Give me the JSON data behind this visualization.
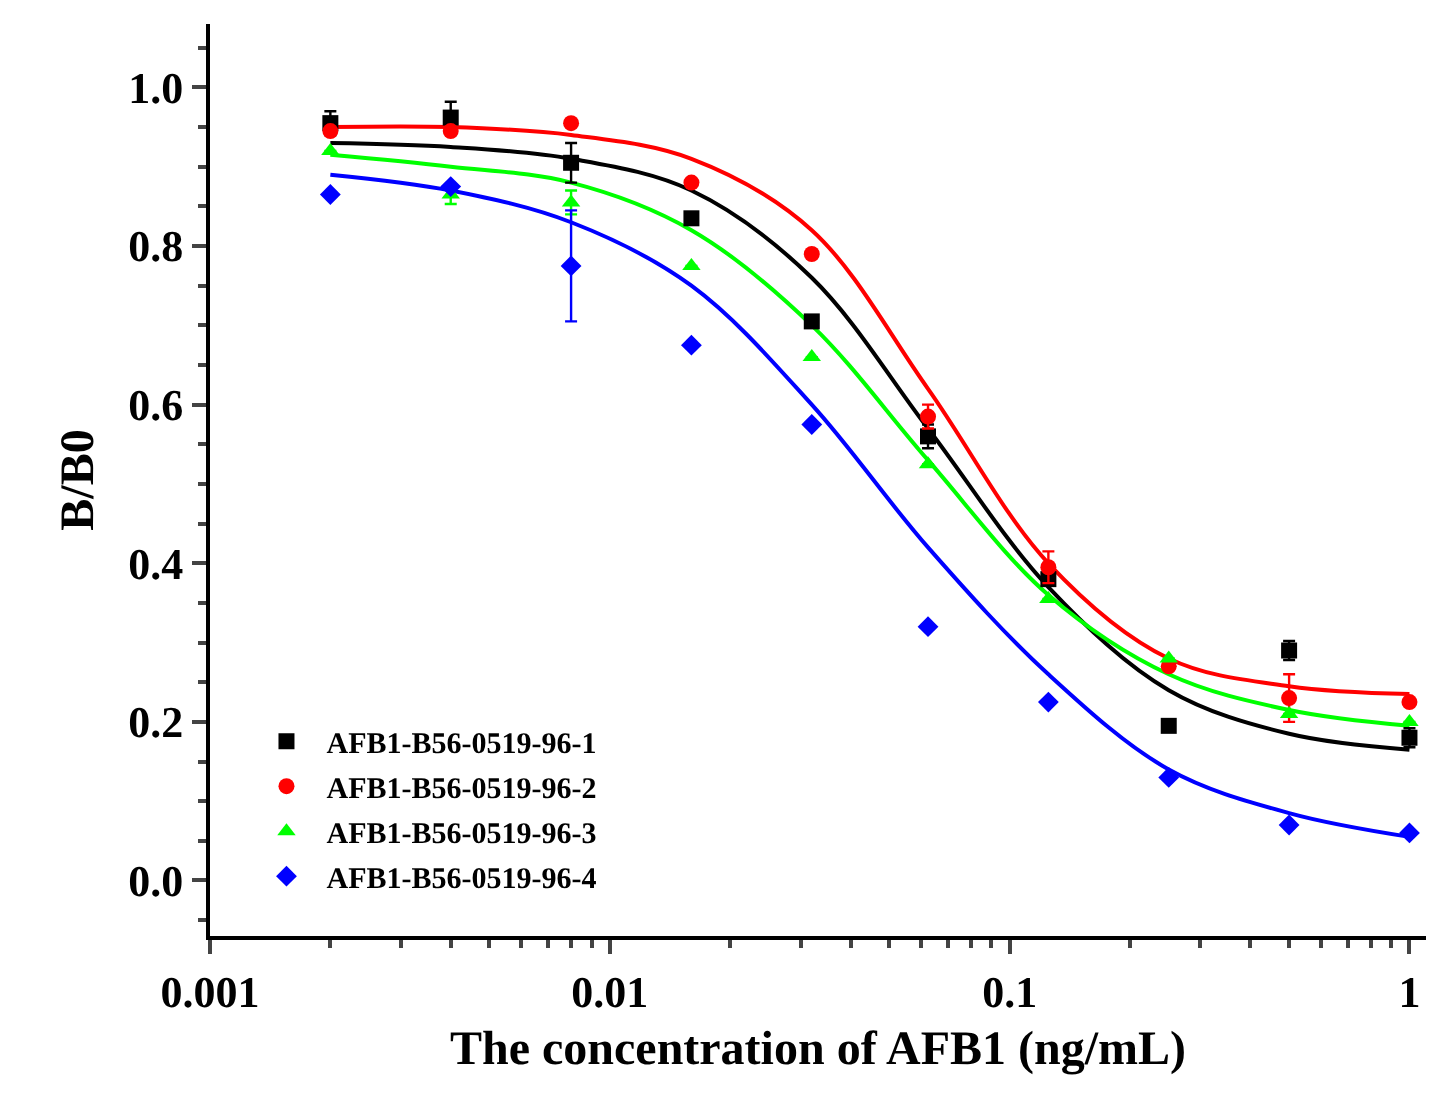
{
  "chart_data": {
    "type": "scatter",
    "xlabel": "The concentration of AFB1 (ng/mL)",
    "ylabel": "B/B0",
    "log": "x",
    "xlim": [
      0.001,
      1.1
    ],
    "xticks": [
      0.001,
      0.01,
      0.1,
      1
    ],
    "ylim": [
      -0.07,
      1.08
    ],
    "yticks": [
      {
        "value": 0,
        "label": "0.0"
      },
      {
        "value": 0.2,
        "label": "0.2"
      },
      {
        "value": 0.4,
        "label": "0.4"
      },
      {
        "value": 0.6,
        "label": "0.6"
      },
      {
        "value": 0.8,
        "label": "0.8"
      },
      {
        "value": 1,
        "label": "1.0"
      }
    ],
    "grid": false,
    "legend": "bottom left",
    "x": [
      0.002,
      0.004,
      0.008,
      0.016,
      0.032,
      0.0625,
      0.125,
      0.25,
      0.5,
      1
    ],
    "series": [
      {
        "name": "AFB1-B56-0519-96-1",
        "marker": "square",
        "color": "#000000",
        "values": [
          0.955,
          0.962,
          0.905,
          0.835,
          0.705,
          0.56,
          0.38,
          0.195,
          0.29,
          0.18
        ],
        "errors": [
          0.015,
          0.02,
          0.025,
          null,
          null,
          0.015,
          null,
          null,
          0.012,
          0.012
        ]
      },
      {
        "name": "AFB1-B56-0519-96-2",
        "marker": "circle",
        "color": "#ff0000",
        "values": [
          0.945,
          0.945,
          0.955,
          0.88,
          0.79,
          0.585,
          0.395,
          0.27,
          0.23,
          0.225
        ],
        "errors": [
          null,
          null,
          null,
          null,
          null,
          0.015,
          0.02,
          null,
          0.03,
          null
        ]
      },
      {
        "name": "AFB1-B56-0519-96-3",
        "marker": "triangle",
        "color": "#00ff00",
        "values": [
          0.92,
          0.865,
          0.855,
          0.775,
          0.66,
          0.525,
          0.355,
          0.28,
          0.21,
          0.2
        ],
        "errors": [
          null,
          0.012,
          0.015,
          null,
          null,
          null,
          null,
          null,
          null,
          null
        ]
      },
      {
        "name": "AFB1-B56-0519-96-4",
        "marker": "diamond",
        "color": "#0000ff",
        "values": [
          0.865,
          0.875,
          0.775,
          0.675,
          0.575,
          0.32,
          0.225,
          0.13,
          0.07,
          0.06
        ],
        "errors": [
          null,
          null,
          0.07,
          null,
          null,
          null,
          null,
          null,
          null,
          null
        ]
      },
      {
        "type": "line",
        "marker": "none",
        "color": "#000000",
        "values": [
          0.93,
          0.925,
          0.91,
          0.87,
          0.76,
          0.57,
          0.37,
          0.24,
          0.185,
          0.165
        ]
      },
      {
        "type": "line",
        "marker": "none",
        "color": "#ff0000",
        "values": [
          0.95,
          0.95,
          0.94,
          0.91,
          0.82,
          0.62,
          0.4,
          0.28,
          0.245,
          0.235
        ]
      },
      {
        "type": "line",
        "marker": "none",
        "color": "#00ff00",
        "values": [
          0.915,
          0.9,
          0.88,
          0.82,
          0.7,
          0.53,
          0.36,
          0.26,
          0.215,
          0.195
        ]
      },
      {
        "type": "line",
        "marker": "none",
        "color": "#0000ff",
        "values": [
          0.89,
          0.87,
          0.83,
          0.75,
          0.6,
          0.42,
          0.26,
          0.14,
          0.085,
          0.055
        ]
      }
    ]
  }
}
